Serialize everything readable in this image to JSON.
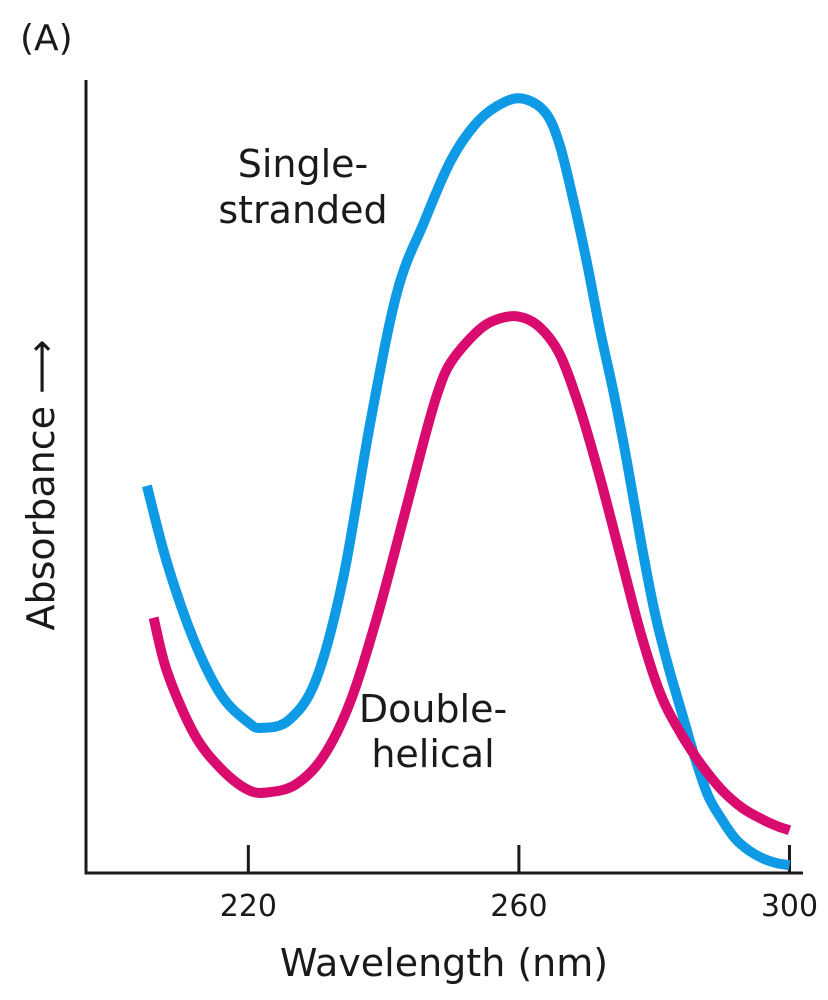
{
  "panel_label": "(A)",
  "chart_data": {
    "type": "line",
    "xlabel": "Wavelength (nm)",
    "ylabel": "Absorbance ⟶",
    "xlim": [
      196,
      302
    ],
    "ylim": [
      0,
      100
    ],
    "xticks": [
      220,
      260,
      300
    ],
    "grid": false,
    "legend": "none",
    "series": [
      {
        "name": "Single-stranded",
        "label_lines": [
          "Single-",
          "stranded"
        ],
        "color": "#0f9ae6",
        "points": [
          [
            205,
            49
          ],
          [
            208,
            39
          ],
          [
            212,
            29
          ],
          [
            216,
            22
          ],
          [
            220,
            18.5
          ],
          [
            222,
            17.8
          ],
          [
            226,
            18.8
          ],
          [
            230,
            24
          ],
          [
            234,
            37
          ],
          [
            238,
            57
          ],
          [
            242,
            74
          ],
          [
            246,
            83
          ],
          [
            250,
            91
          ],
          [
            254,
            96
          ],
          [
            258,
            98.5
          ],
          [
            261,
            98.8
          ],
          [
            264,
            97
          ],
          [
            266,
            93
          ],
          [
            268,
            86
          ],
          [
            270,
            78
          ],
          [
            272,
            69
          ],
          [
            274,
            61
          ],
          [
            276,
            52
          ],
          [
            278,
            42
          ],
          [
            280,
            33
          ],
          [
            282,
            26
          ],
          [
            284,
            20
          ],
          [
            286,
            14
          ],
          [
            288,
            9
          ],
          [
            290,
            6
          ],
          [
            292,
            3.5
          ],
          [
            294,
            2
          ],
          [
            296,
            1
          ],
          [
            298,
            0.4
          ],
          [
            300,
            0.1
          ]
        ]
      },
      {
        "name": "Double-helical",
        "label_lines": [
          "Double-",
          "helical"
        ],
        "color": "#d90b6e",
        "points": [
          [
            206,
            32
          ],
          [
            208,
            25
          ],
          [
            212,
            17
          ],
          [
            216,
            12.5
          ],
          [
            220,
            9.8
          ],
          [
            223,
            9.5
          ],
          [
            227,
            10.5
          ],
          [
            231,
            14
          ],
          [
            235,
            21
          ],
          [
            239,
            32
          ],
          [
            243,
            45
          ],
          [
            246,
            55
          ],
          [
            248,
            61
          ],
          [
            250,
            65
          ],
          [
            254,
            69
          ],
          [
            257,
            70.5
          ],
          [
            260,
            70.8
          ],
          [
            263,
            69.5
          ],
          [
            266,
            66
          ],
          [
            269,
            59
          ],
          [
            272,
            50
          ],
          [
            275,
            40
          ],
          [
            278,
            30
          ],
          [
            281,
            22
          ],
          [
            284,
            17
          ],
          [
            287,
            13
          ],
          [
            290,
            9.8
          ],
          [
            293,
            7.5
          ],
          [
            296,
            6
          ],
          [
            298,
            5.2
          ],
          [
            300,
            4.6
          ]
        ]
      }
    ]
  }
}
